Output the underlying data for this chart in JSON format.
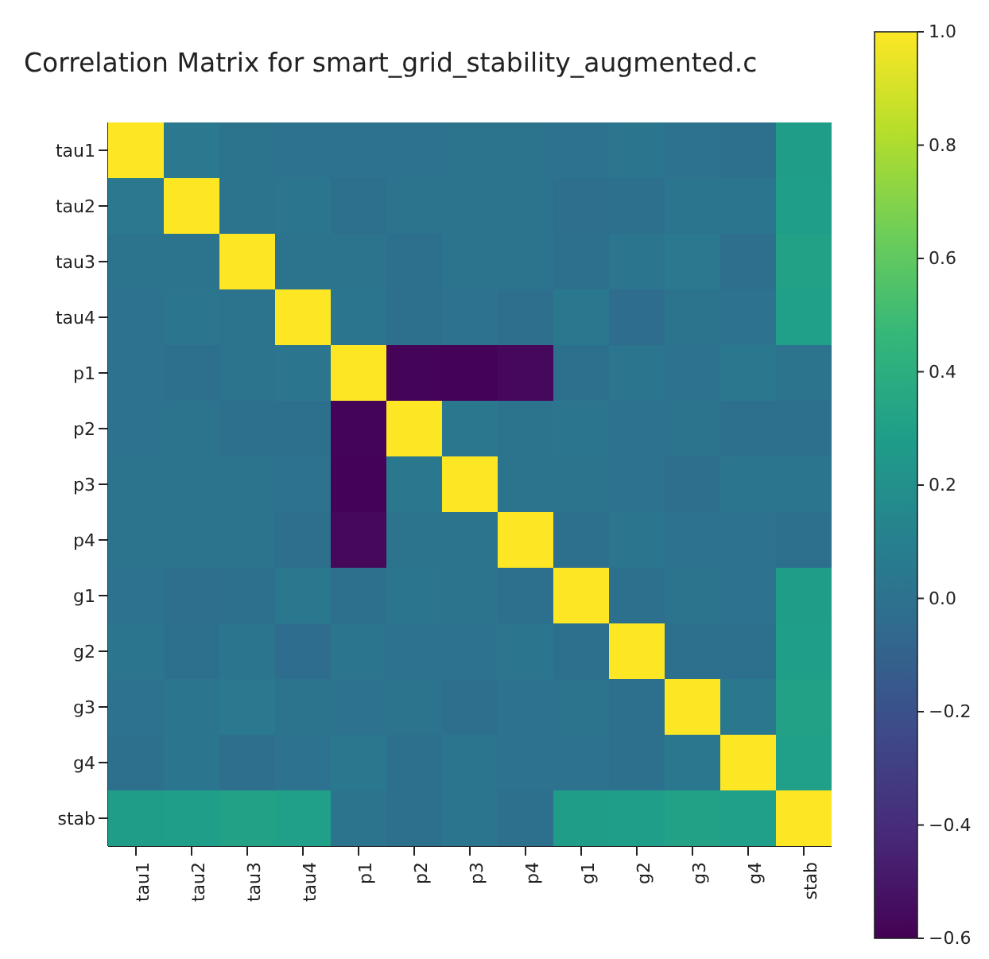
{
  "chart_data": {
    "type": "heatmap",
    "title": "Correlation Matrix for smart_grid_stability_augmented.c",
    "categories": [
      "tau1",
      "tau2",
      "tau3",
      "tau4",
      "p1",
      "p2",
      "p3",
      "p4",
      "g1",
      "g2",
      "g3",
      "g4",
      "stab"
    ],
    "y_categories": [
      "tau1",
      "tau2",
      "tau3",
      "tau4",
      "p1",
      "p2",
      "p3",
      "p4",
      "g1",
      "g2",
      "g3",
      "g4",
      "stab"
    ],
    "cells": [
      [
        1,
        0.05,
        0.01,
        0,
        0,
        0,
        0.01,
        0.01,
        0,
        0.03,
        0,
        -0.01,
        0.28
      ],
      [
        0.05,
        1,
        0.01,
        0.02,
        -0.01,
        0.01,
        0.01,
        0.01,
        -0.02,
        -0.01,
        0.03,
        0.02,
        0.29
      ],
      [
        0.01,
        0.01,
        1,
        0.01,
        0.01,
        -0.01,
        0.01,
        0.01,
        -0.01,
        0.02,
        0.05,
        -0.02,
        0.31
      ],
      [
        0,
        0.02,
        0.01,
        1,
        0.03,
        -0.01,
        0,
        -0.02,
        0.04,
        -0.03,
        0.01,
        0,
        0.3
      ],
      [
        0,
        -0.01,
        0.01,
        0.03,
        1,
        -0.58,
        -0.59,
        -0.57,
        -0.01,
        0.02,
        0,
        0.04,
        0.01
      ],
      [
        0,
        0.01,
        -0.01,
        -0.01,
        -0.58,
        1,
        0.04,
        0.01,
        0.03,
        0,
        0.01,
        -0.01,
        -0.01
      ],
      [
        0.01,
        0.01,
        0.01,
        0,
        -0.59,
        0.04,
        1,
        0.01,
        0.01,
        0,
        -0.02,
        0.02,
        0.02
      ],
      [
        0.01,
        0.01,
        0.01,
        -0.02,
        -0.57,
        0.01,
        0.01,
        1,
        -0.01,
        0.02,
        0,
        0,
        -0.01
      ],
      [
        0,
        -0.02,
        -0.01,
        0.04,
        -0.01,
        0.03,
        0.01,
        -0.01,
        1,
        -0.01,
        0.01,
        0,
        0.28
      ],
      [
        0.03,
        -0.01,
        0.02,
        -0.03,
        0.02,
        0,
        0,
        0.02,
        -0.01,
        1,
        -0.01,
        -0.01,
        0.29
      ],
      [
        0,
        0.03,
        0.05,
        0.01,
        0,
        0.01,
        -0.02,
        0,
        0.01,
        -0.01,
        1,
        0.04,
        0.31
      ],
      [
        -0.01,
        0.02,
        -0.02,
        0,
        0.04,
        -0.01,
        0.02,
        0,
        0,
        -0.01,
        0.04,
        1,
        0.3
      ],
      [
        0.28,
        0.29,
        0.31,
        0.3,
        0.01,
        -0.01,
        0.02,
        -0.01,
        0.28,
        0.29,
        0.31,
        0.3,
        1
      ]
    ],
    "clim": [
      -0.6,
      1.0
    ],
    "cticks": [
      -0.6,
      -0.4,
      -0.2,
      {
        "value": 0,
        "label": "0.0"
      },
      0.2,
      0.4,
      0.6,
      0.8,
      {
        "value": 1,
        "label": "1.0"
      }
    ]
  }
}
